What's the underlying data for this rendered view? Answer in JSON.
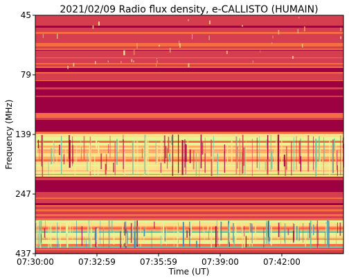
{
  "chart_data": {
    "type": "heatmap",
    "title": "2021/02/09  Radio flux density, e-CALLISTO (HUMAIN)",
    "xlabel": "Time (UT)",
    "ylabel": "Frequency (MHz)",
    "x_ticks": [
      "07:30:00",
      "07:32:59",
      "07:35:59",
      "07:39:00",
      "07:42:00"
    ],
    "y_ticks": [
      "45",
      "79",
      "139",
      "247",
      "437"
    ],
    "ylim": [
      45,
      437
    ],
    "y_inverted": true,
    "colormap": "Spectral",
    "colors": {
      "low": "#9e0142",
      "mid_low": "#d53e4f",
      "mid": "#f46d43",
      "mid_high": "#fdae61",
      "high": "#fee08b",
      "peak": "#e6f598",
      "cool": "#66c2a5",
      "coolest": "#3288bd"
    },
    "bands": [
      {
        "freq_range_mhz": [
          45,
          79
        ],
        "level": "mid_low",
        "note": "sparse bright speckles"
      },
      {
        "freq_range_mhz": [
          85,
          118
        ],
        "level": "low"
      },
      {
        "freq_range_mhz": [
          125,
          136
        ],
        "level": "low"
      },
      {
        "freq_range_mhz": [
          139,
          215
        ],
        "level": "high",
        "note": "bursty vertical streaks"
      },
      {
        "freq_range_mhz": [
          222,
          243
        ],
        "level": "low"
      },
      {
        "freq_range_mhz": [
          330,
          420
        ],
        "level": "peak",
        "note": "strong bursty emission"
      }
    ]
  }
}
